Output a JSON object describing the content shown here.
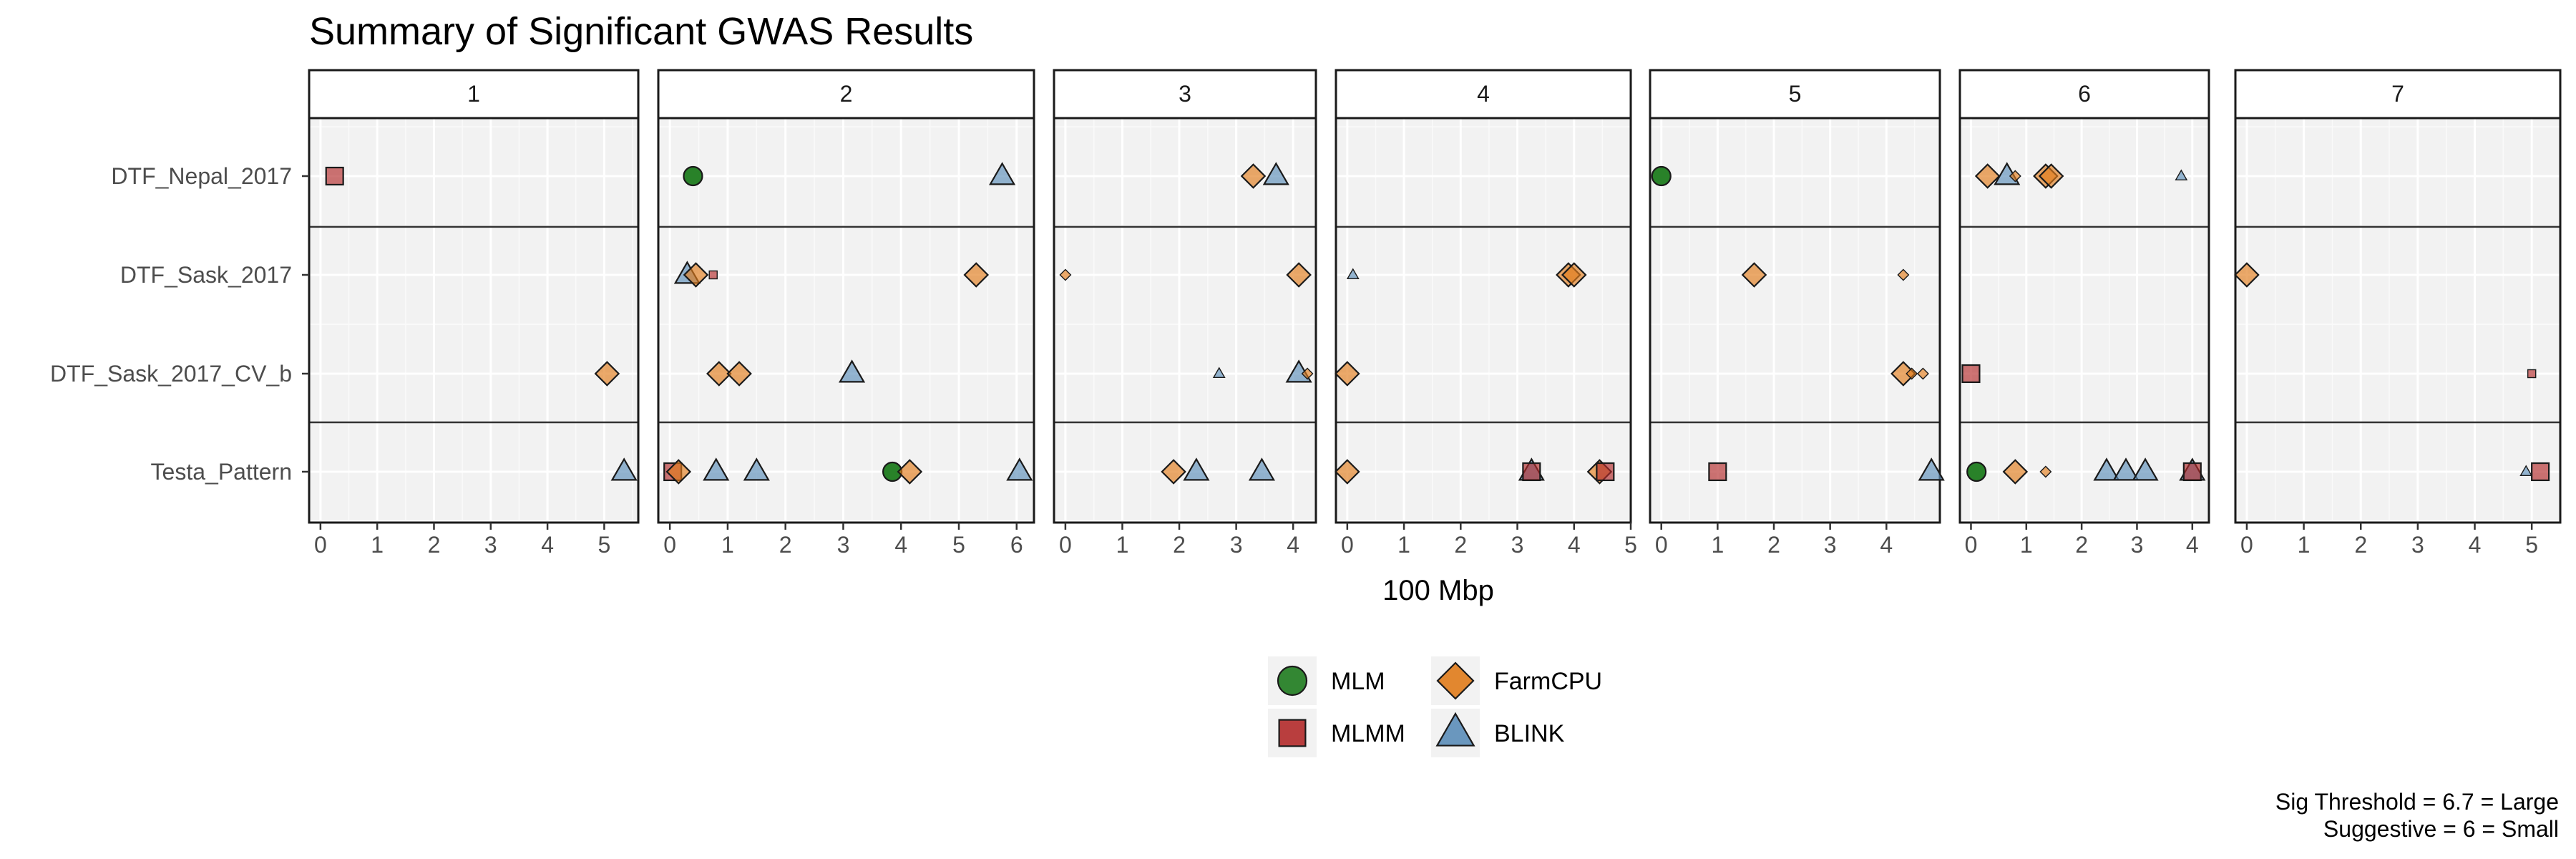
{
  "chart_data": {
    "type": "scatter",
    "title": "Summary of Significant GWAS Results",
    "xlabel": "100 Mbp",
    "caption": [
      "Sig Threshold = 6.7 = Large",
      "Suggestive = 6 = Small"
    ],
    "legend_position": "bottom",
    "grid": true,
    "facets": [
      {
        "label": "1",
        "xlim": [
          -0.2,
          5.6
        ],
        "ticks": [
          "0",
          "1",
          "2",
          "3",
          "4",
          "5"
        ]
      },
      {
        "label": "2",
        "xlim": [
          -0.2,
          6.3
        ],
        "ticks": [
          "0",
          "1",
          "2",
          "3",
          "4",
          "5",
          "6"
        ]
      },
      {
        "label": "3",
        "xlim": [
          -0.2,
          4.4
        ],
        "ticks": [
          "0",
          "1",
          "2",
          "3",
          "4"
        ]
      },
      {
        "label": "4",
        "xlim": [
          -0.2,
          5.0
        ],
        "ticks": [
          "0",
          "1",
          "2",
          "3",
          "4",
          "5"
        ]
      },
      {
        "label": "5",
        "xlim": [
          -0.2,
          4.95
        ],
        "ticks": [
          "0",
          "1",
          "2",
          "3",
          "4"
        ]
      },
      {
        "label": "6",
        "xlim": [
          -0.2,
          4.3
        ],
        "ticks": [
          "0",
          "1",
          "2",
          "3",
          "4"
        ]
      },
      {
        "label": "7",
        "xlim": [
          -0.2,
          5.5
        ],
        "ticks": [
          "0",
          "1",
          "2",
          "3",
          "4",
          "5"
        ]
      }
    ],
    "traits": [
      "DTF_Nepal_2017",
      "DTF_Sask_2017",
      "DTF_Sask_2017_CV_b",
      "Testa_Pattern"
    ],
    "models": [
      {
        "name": "MLM",
        "shape": "circle",
        "color": "#1e7b1e"
      },
      {
        "name": "MLMM",
        "shape": "square",
        "color": "#b22a2a"
      },
      {
        "name": "FarmCPU",
        "shape": "diamond",
        "color": "#e07b1a"
      },
      {
        "name": "BLINK",
        "shape": "triangle",
        "color": "#5b8db8"
      }
    ],
    "points": [
      {
        "chr": "1",
        "trait": "DTF_Nepal_2017",
        "model": "MLMM",
        "x": 0.25,
        "size": "large"
      },
      {
        "chr": "1",
        "trait": "DTF_Sask_2017_CV_b",
        "model": "FarmCPU",
        "x": 5.05,
        "size": "large"
      },
      {
        "chr": "1",
        "trait": "Testa_Pattern",
        "model": "BLINK",
        "x": 5.35,
        "size": "large"
      },
      {
        "chr": "2",
        "trait": "DTF_Nepal_2017",
        "model": "MLM",
        "x": 0.4,
        "size": "large"
      },
      {
        "chr": "2",
        "trait": "DTF_Nepal_2017",
        "model": "BLINK",
        "x": 5.75,
        "size": "large"
      },
      {
        "chr": "2",
        "trait": "DTF_Sask_2017",
        "model": "BLINK",
        "x": 0.3,
        "size": "large"
      },
      {
        "chr": "2",
        "trait": "DTF_Sask_2017",
        "model": "FarmCPU",
        "x": 0.45,
        "size": "large"
      },
      {
        "chr": "2",
        "trait": "DTF_Sask_2017",
        "model": "MLMM",
        "x": 0.75,
        "size": "small"
      },
      {
        "chr": "2",
        "trait": "DTF_Sask_2017",
        "model": "FarmCPU",
        "x": 5.3,
        "size": "large"
      },
      {
        "chr": "2",
        "trait": "DTF_Sask_2017_CV_b",
        "model": "FarmCPU",
        "x": 0.85,
        "size": "large"
      },
      {
        "chr": "2",
        "trait": "DTF_Sask_2017_CV_b",
        "model": "FarmCPU",
        "x": 1.2,
        "size": "large"
      },
      {
        "chr": "2",
        "trait": "DTF_Sask_2017_CV_b",
        "model": "BLINK",
        "x": 3.15,
        "size": "large"
      },
      {
        "chr": "2",
        "trait": "Testa_Pattern",
        "model": "MLMM",
        "x": 0.05,
        "size": "large"
      },
      {
        "chr": "2",
        "trait": "Testa_Pattern",
        "model": "FarmCPU",
        "x": 0.15,
        "size": "large"
      },
      {
        "chr": "2",
        "trait": "Testa_Pattern",
        "model": "BLINK",
        "x": 0.8,
        "size": "large"
      },
      {
        "chr": "2",
        "trait": "Testa_Pattern",
        "model": "BLINK",
        "x": 1.5,
        "size": "large"
      },
      {
        "chr": "2",
        "trait": "Testa_Pattern",
        "model": "MLM",
        "x": 3.85,
        "size": "large"
      },
      {
        "chr": "2",
        "trait": "Testa_Pattern",
        "model": "FarmCPU",
        "x": 4.15,
        "size": "large"
      },
      {
        "chr": "2",
        "trait": "Testa_Pattern",
        "model": "BLINK",
        "x": 6.05,
        "size": "large"
      },
      {
        "chr": "3",
        "trait": "DTF_Nepal_2017",
        "model": "FarmCPU",
        "x": 3.3,
        "size": "large"
      },
      {
        "chr": "3",
        "trait": "DTF_Nepal_2017",
        "model": "BLINK",
        "x": 3.7,
        "size": "large"
      },
      {
        "chr": "3",
        "trait": "DTF_Sask_2017",
        "model": "FarmCPU",
        "x": 0.0,
        "size": "small"
      },
      {
        "chr": "3",
        "trait": "DTF_Sask_2017",
        "model": "FarmCPU",
        "x": 4.1,
        "size": "large"
      },
      {
        "chr": "3",
        "trait": "DTF_Sask_2017_CV_b",
        "model": "BLINK",
        "x": 2.7,
        "size": "small"
      },
      {
        "chr": "3",
        "trait": "DTF_Sask_2017_CV_b",
        "model": "BLINK",
        "x": 4.1,
        "size": "large"
      },
      {
        "chr": "3",
        "trait": "DTF_Sask_2017_CV_b",
        "model": "FarmCPU",
        "x": 4.25,
        "size": "small"
      },
      {
        "chr": "3",
        "trait": "Testa_Pattern",
        "model": "FarmCPU",
        "x": 1.9,
        "size": "large"
      },
      {
        "chr": "3",
        "trait": "Testa_Pattern",
        "model": "BLINK",
        "x": 2.3,
        "size": "large"
      },
      {
        "chr": "3",
        "trait": "Testa_Pattern",
        "model": "BLINK",
        "x": 3.45,
        "size": "large"
      },
      {
        "chr": "4",
        "trait": "DTF_Sask_2017",
        "model": "BLINK",
        "x": 0.1,
        "size": "small"
      },
      {
        "chr": "4",
        "trait": "DTF_Sask_2017",
        "model": "FarmCPU",
        "x": 3.9,
        "size": "large"
      },
      {
        "chr": "4",
        "trait": "DTF_Sask_2017",
        "model": "FarmCPU",
        "x": 4.0,
        "size": "large"
      },
      {
        "chr": "4",
        "trait": "DTF_Sask_2017_CV_b",
        "model": "FarmCPU",
        "x": 0.0,
        "size": "large"
      },
      {
        "chr": "4",
        "trait": "Testa_Pattern",
        "model": "FarmCPU",
        "x": 0.0,
        "size": "large"
      },
      {
        "chr": "4",
        "trait": "Testa_Pattern",
        "model": "BLINK",
        "x": 3.25,
        "size": "large"
      },
      {
        "chr": "4",
        "trait": "Testa_Pattern",
        "model": "MLMM",
        "x": 3.25,
        "size": "large"
      },
      {
        "chr": "4",
        "trait": "Testa_Pattern",
        "model": "FarmCPU",
        "x": 4.45,
        "size": "large"
      },
      {
        "chr": "4",
        "trait": "Testa_Pattern",
        "model": "MLMM",
        "x": 4.55,
        "size": "large"
      },
      {
        "chr": "5",
        "trait": "DTF_Nepal_2017",
        "model": "MLM",
        "x": 0.0,
        "size": "large"
      },
      {
        "chr": "5",
        "trait": "DTF_Sask_2017",
        "model": "FarmCPU",
        "x": 1.65,
        "size": "large"
      },
      {
        "chr": "5",
        "trait": "DTF_Sask_2017",
        "model": "FarmCPU",
        "x": 4.3,
        "size": "small"
      },
      {
        "chr": "5",
        "trait": "DTF_Sask_2017_CV_b",
        "model": "FarmCPU",
        "x": 4.3,
        "size": "large"
      },
      {
        "chr": "5",
        "trait": "DTF_Sask_2017_CV_b",
        "model": "FarmCPU",
        "x": 4.45,
        "size": "small"
      },
      {
        "chr": "5",
        "trait": "DTF_Sask_2017_CV_b",
        "model": "FarmCPU",
        "x": 4.65,
        "size": "small"
      },
      {
        "chr": "5",
        "trait": "Testa_Pattern",
        "model": "MLMM",
        "x": 1.0,
        "size": "large"
      },
      {
        "chr": "5",
        "trait": "Testa_Pattern",
        "model": "BLINK",
        "x": 4.8,
        "size": "large"
      },
      {
        "chr": "6",
        "trait": "DTF_Nepal_2017",
        "model": "FarmCPU",
        "x": 0.3,
        "size": "large"
      },
      {
        "chr": "6",
        "trait": "DTF_Nepal_2017",
        "model": "BLINK",
        "x": 0.65,
        "size": "large"
      },
      {
        "chr": "6",
        "trait": "DTF_Nepal_2017",
        "model": "FarmCPU",
        "x": 0.8,
        "size": "small"
      },
      {
        "chr": "6",
        "trait": "DTF_Nepal_2017",
        "model": "FarmCPU",
        "x": 1.35,
        "size": "large"
      },
      {
        "chr": "6",
        "trait": "DTF_Nepal_2017",
        "model": "FarmCPU",
        "x": 1.45,
        "size": "large"
      },
      {
        "chr": "6",
        "trait": "DTF_Nepal_2017",
        "model": "BLINK",
        "x": 3.8,
        "size": "small"
      },
      {
        "chr": "6",
        "trait": "DTF_Sask_2017_CV_b",
        "model": "MLMM",
        "x": 0.0,
        "size": "large"
      },
      {
        "chr": "6",
        "trait": "Testa_Pattern",
        "model": "MLM",
        "x": 0.1,
        "size": "large"
      },
      {
        "chr": "6",
        "trait": "Testa_Pattern",
        "model": "FarmCPU",
        "x": 0.8,
        "size": "large"
      },
      {
        "chr": "6",
        "trait": "Testa_Pattern",
        "model": "FarmCPU",
        "x": 1.35,
        "size": "small"
      },
      {
        "chr": "6",
        "trait": "Testa_Pattern",
        "model": "BLINK",
        "x": 2.45,
        "size": "large"
      },
      {
        "chr": "6",
        "trait": "Testa_Pattern",
        "model": "BLINK",
        "x": 2.8,
        "size": "large"
      },
      {
        "chr": "6",
        "trait": "Testa_Pattern",
        "model": "BLINK",
        "x": 3.15,
        "size": "large"
      },
      {
        "chr": "6",
        "trait": "Testa_Pattern",
        "model": "BLINK",
        "x": 4.0,
        "size": "large"
      },
      {
        "chr": "6",
        "trait": "Testa_Pattern",
        "model": "MLMM",
        "x": 4.0,
        "size": "large"
      },
      {
        "chr": "7",
        "trait": "DTF_Sask_2017",
        "model": "FarmCPU",
        "x": 0.0,
        "size": "large"
      },
      {
        "chr": "7",
        "trait": "DTF_Sask_2017_CV_b",
        "model": "MLMM",
        "x": 5.0,
        "size": "small"
      },
      {
        "chr": "7",
        "trait": "Testa_Pattern",
        "model": "BLINK",
        "x": 4.9,
        "size": "small"
      },
      {
        "chr": "7",
        "trait": "Testa_Pattern",
        "model": "MLMM",
        "x": 5.15,
        "size": "large"
      }
    ]
  }
}
